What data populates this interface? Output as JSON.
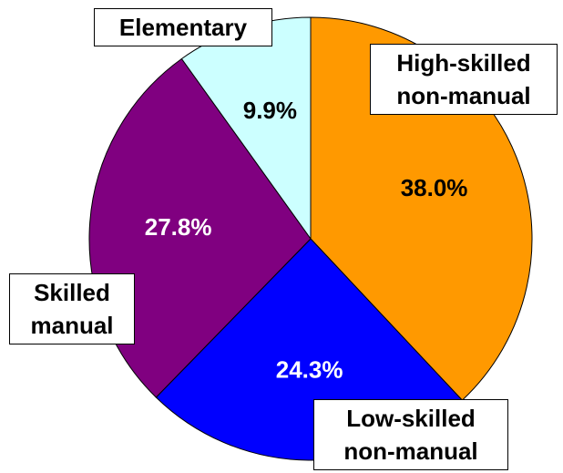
{
  "chart_data": {
    "type": "pie",
    "categories": [
      "High-skilled non-manual",
      "Low-skilled non-manual",
      "Skilled manual",
      "Elementary"
    ],
    "values": [
      38.0,
      24.3,
      27.8,
      9.9
    ],
    "value_labels": [
      "38.0%",
      "24.3%",
      "27.8%",
      "9.9%"
    ],
    "colors": [
      "#ff9900",
      "#0000ff",
      "#800080",
      "#ccffff"
    ],
    "label_colors": [
      "#000000",
      "#ffffff",
      "#ffffff",
      "#000000"
    ]
  }
}
